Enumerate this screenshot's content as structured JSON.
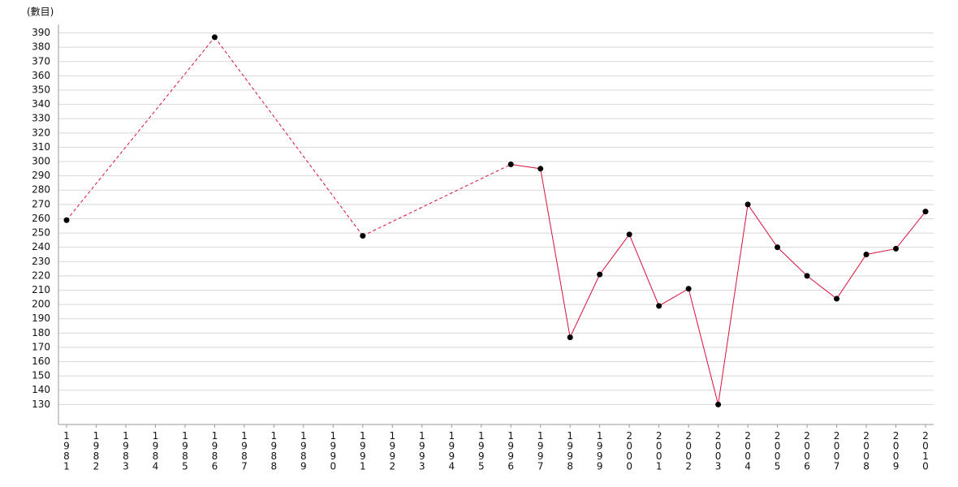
{
  "chart_data": {
    "type": "line",
    "y_label": "(數目)",
    "categories": [
      "1981",
      "1982",
      "1983",
      "1984",
      "1985",
      "1986",
      "1987",
      "1988",
      "1989",
      "1990",
      "1991",
      "1992",
      "1993",
      "1994",
      "1995",
      "1996",
      "1997",
      "1998",
      "1999",
      "2000",
      "2001",
      "2002",
      "2003",
      "2004",
      "2005",
      "2006",
      "2007",
      "2008",
      "2009",
      "2010"
    ],
    "series": [
      {
        "color": "#d6103a",
        "values": [
          259,
          null,
          null,
          null,
          null,
          387,
          null,
          null,
          null,
          null,
          248,
          null,
          null,
          null,
          null,
          298,
          295,
          177,
          221,
          249,
          199,
          211,
          130,
          270,
          240,
          220,
          204,
          235,
          239,
          265
        ]
      }
    ],
    "ylim": [
      116,
      396
    ],
    "yticks": [
      130,
      140,
      150,
      160,
      170,
      180,
      190,
      200,
      210,
      220,
      230,
      240,
      250,
      260,
      270,
      280,
      290,
      300,
      310,
      320,
      330,
      340,
      350,
      360,
      370,
      380,
      390
    ],
    "grid": true
  }
}
